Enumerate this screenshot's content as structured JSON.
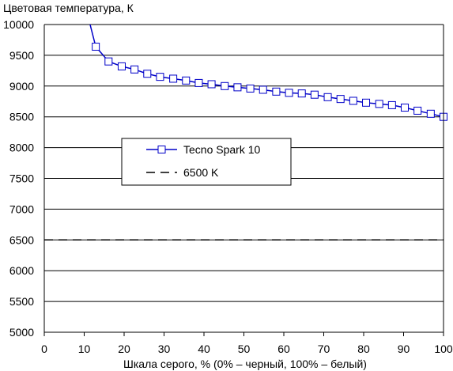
{
  "chart_data": {
    "type": "line",
    "ylabel": "Цветовая температура, К",
    "xlabel": "Шкала серого, % (0% – черный, 100% – белый)",
    "xlim": [
      0,
      100
    ],
    "ylim": [
      5000,
      10000
    ],
    "xticks": [
      0,
      10,
      20,
      30,
      40,
      50,
      60,
      70,
      80,
      90,
      100
    ],
    "yticks": [
      5000,
      5500,
      6000,
      6500,
      7000,
      7500,
      8000,
      8500,
      9000,
      9500,
      10000
    ],
    "grid": "horizontal",
    "legend_position": "center-left",
    "series": [
      {
        "name": "Tecno Spark 10",
        "color": "#0000c8",
        "marker": "open-square",
        "line": "solid",
        "x": [
          9.7,
          12.9,
          16.1,
          19.4,
          22.6,
          25.8,
          29.0,
          32.3,
          35.5,
          38.7,
          41.9,
          45.2,
          48.4,
          51.6,
          54.8,
          58.1,
          61.3,
          64.5,
          67.7,
          71.0,
          74.2,
          77.4,
          80.6,
          83.9,
          87.1,
          90.3,
          93.5,
          96.8,
          100.0
        ],
        "y": [
          10450,
          9640,
          9400,
          9320,
          9270,
          9200,
          9150,
          9120,
          9090,
          9050,
          9030,
          9000,
          8980,
          8960,
          8940,
          8910,
          8890,
          8880,
          8860,
          8820,
          8790,
          8760,
          8730,
          8710,
          8690,
          8650,
          8600,
          8550,
          8500
        ]
      },
      {
        "name": "6500 K",
        "color": "#000000",
        "line": "dashed",
        "x": [
          0,
          100
        ],
        "y": [
          6500,
          6500
        ]
      }
    ]
  }
}
